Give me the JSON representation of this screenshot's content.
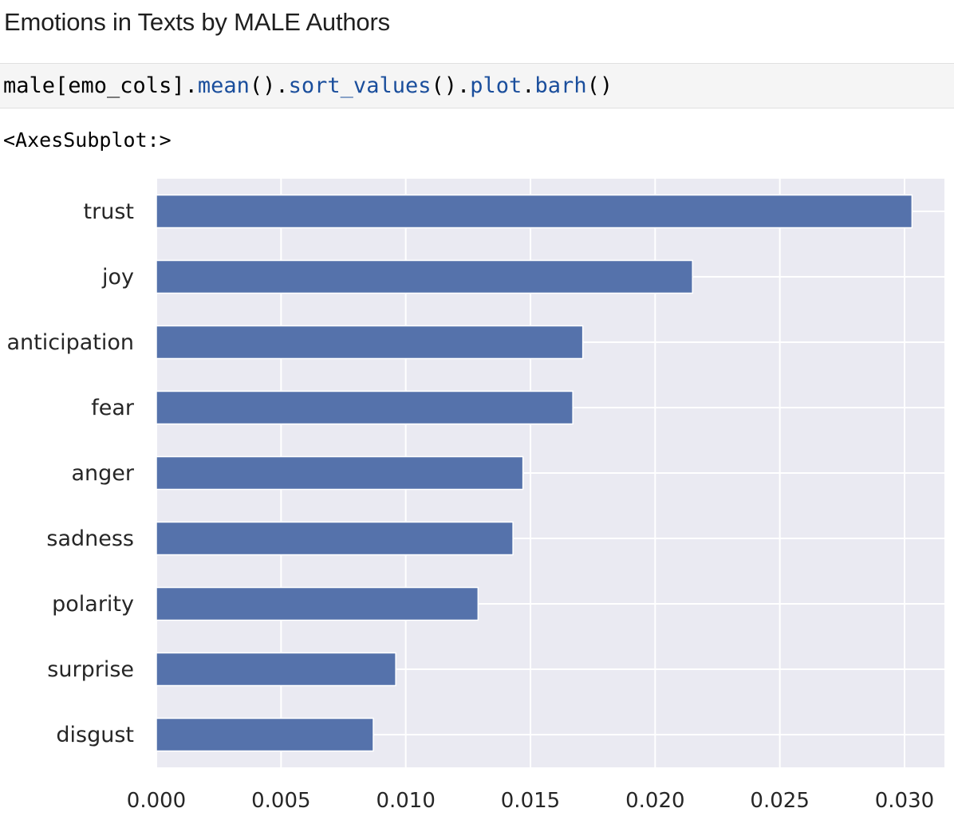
{
  "heading": "Emotions in Texts by MALE Authors",
  "code": {
    "segments": [
      {
        "text": "male[emo_cols].",
        "kind": "plain"
      },
      {
        "text": "mean",
        "kind": "fn"
      },
      {
        "text": "().",
        "kind": "plain"
      },
      {
        "text": "sort_values",
        "kind": "fn"
      },
      {
        "text": "().",
        "kind": "plain"
      },
      {
        "text": "plot",
        "kind": "fn"
      },
      {
        "text": ".",
        "kind": "plain"
      },
      {
        "text": "barh",
        "kind": "fn"
      },
      {
        "text": "()",
        "kind": "plain"
      }
    ]
  },
  "output_text": "<AxesSubplot:>",
  "colors": {
    "bar": "#5572ab",
    "plot_background": "#eaeaf2",
    "grid": "#ffffff",
    "code_function": "#1a4e9c"
  },
  "chart_data": {
    "type": "bar",
    "orientation": "horizontal",
    "categories": [
      "trust",
      "joy",
      "anticipation",
      "fear",
      "anger",
      "sadness",
      "polarity",
      "surprise",
      "disgust"
    ],
    "values": [
      0.0303,
      0.0215,
      0.0171,
      0.0167,
      0.0147,
      0.0143,
      0.0129,
      0.0096,
      0.0087
    ],
    "xlim": [
      0,
      0.0316
    ],
    "xticks": [
      0.0,
      0.005,
      0.01,
      0.015,
      0.02,
      0.025,
      0.03
    ],
    "xtick_labels": [
      "0.000",
      "0.005",
      "0.010",
      "0.015",
      "0.020",
      "0.025",
      "0.030"
    ],
    "title": "",
    "xlabel": "",
    "ylabel": "",
    "grid": true,
    "legend": false
  }
}
